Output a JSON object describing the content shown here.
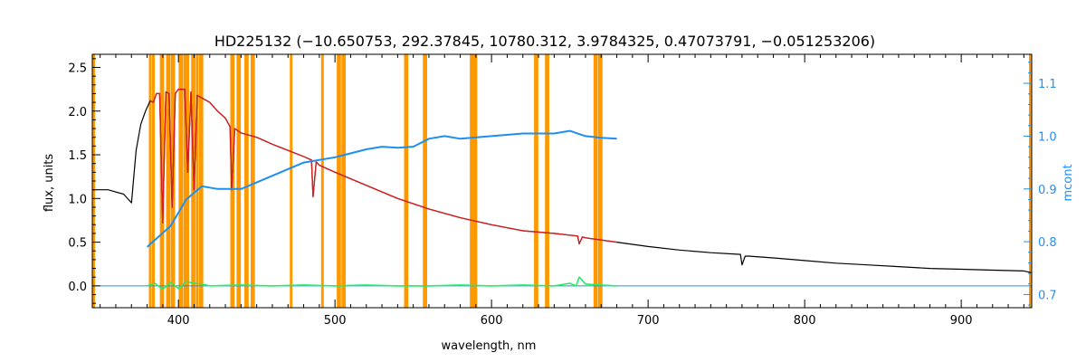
{
  "chart_data": {
    "type": "line",
    "title": "HD225132     (−10.650753, 292.37845, 10780.312, 3.9784325, 0.47073791, −0.051253206)",
    "xlabel": "wavelength, nm",
    "ylabel": "flux, units",
    "ylabel_right": "mcont",
    "xlim": [
      345,
      945
    ],
    "ylim": [
      -0.25,
      2.65
    ],
    "ylim_right": [
      0.675,
      1.155
    ],
    "x_ticks": [
      400,
      500,
      600,
      700,
      800,
      900
    ],
    "y_ticks": [
      0.0,
      0.5,
      1.0,
      1.5,
      2.0,
      2.5
    ],
    "y_ticks_right": [
      0.7,
      0.8,
      0.9,
      1.0,
      1.1
    ],
    "grid": false,
    "colors": {
      "observed": "#000000",
      "model": "#d42020",
      "residual": "#22ee66",
      "continuum": "#1e8fef",
      "mask": "#ff9900"
    },
    "mask_lines_nm": [
      382,
      384,
      389,
      390,
      393,
      394,
      396,
      397,
      401,
      402,
      404,
      405,
      406,
      409,
      410,
      412,
      414,
      415,
      434,
      435,
      438,
      439,
      443,
      444,
      447,
      448,
      472,
      492,
      502,
      503,
      505,
      506,
      545,
      546,
      557,
      558,
      587,
      588,
      589,
      590,
      628,
      629,
      635,
      636,
      666,
      667,
      669,
      670
    ],
    "series": [
      {
        "role": "observed",
        "axis": "left",
        "x": [
          345,
          355,
          365,
          370,
          373,
          376,
          379,
          382,
          384,
          386,
          388,
          390,
          392,
          394,
          396,
          398,
          400,
          402,
          404,
          406,
          408,
          410,
          412,
          415,
          420,
          425,
          430,
          433,
          434,
          436,
          440,
          450,
          460,
          470,
          480,
          485,
          486,
          488,
          490,
          500,
          520,
          540,
          560,
          580,
          600,
          620,
          640,
          655,
          656,
          658,
          660,
          680,
          700,
          720,
          740,
          759,
          760,
          762,
          764,
          780,
          800,
          820,
          840,
          860,
          880,
          900,
          920,
          940,
          945
        ],
        "y": [
          1.1,
          1.1,
          1.05,
          0.95,
          1.55,
          1.85,
          2.0,
          2.12,
          2.1,
          2.2,
          2.2,
          0.72,
          2.22,
          2.2,
          0.9,
          2.2,
          2.25,
          2.25,
          2.25,
          1.3,
          2.22,
          1.1,
          2.18,
          2.15,
          2.1,
          2.0,
          1.92,
          1.82,
          1.1,
          1.8,
          1.75,
          1.7,
          1.62,
          1.55,
          1.48,
          1.44,
          1.02,
          1.42,
          1.38,
          1.3,
          1.15,
          1.0,
          0.88,
          0.78,
          0.7,
          0.63,
          0.6,
          0.57,
          0.48,
          0.56,
          0.55,
          0.5,
          0.45,
          0.41,
          0.38,
          0.36,
          0.24,
          0.34,
          0.34,
          0.32,
          0.29,
          0.26,
          0.24,
          0.22,
          0.2,
          0.19,
          0.18,
          0.17,
          0.15
        ]
      },
      {
        "role": "model",
        "axis": "left",
        "x": [
          382,
          384,
          386,
          388,
          390,
          392,
          394,
          396,
          398,
          400,
          402,
          404,
          406,
          408,
          410,
          412,
          415,
          420,
          425,
          430,
          433,
          434,
          436,
          440,
          450,
          460,
          470,
          480,
          485,
          486,
          488,
          490,
          500,
          520,
          540,
          560,
          580,
          600,
          620,
          640,
          655,
          656,
          658,
          660,
          680
        ],
        "y": [
          2.12,
          2.1,
          2.2,
          2.2,
          0.72,
          2.22,
          2.2,
          0.9,
          2.2,
          2.25,
          2.25,
          2.25,
          1.3,
          2.22,
          1.1,
          2.18,
          2.15,
          2.1,
          2.0,
          1.92,
          1.82,
          1.1,
          1.8,
          1.75,
          1.7,
          1.62,
          1.55,
          1.48,
          1.44,
          1.02,
          1.42,
          1.38,
          1.3,
          1.15,
          1.0,
          0.88,
          0.78,
          0.7,
          0.63,
          0.6,
          0.57,
          0.48,
          0.56,
          0.55,
          0.5
        ]
      },
      {
        "role": "residual",
        "axis": "left",
        "x": [
          380,
          385,
          390,
          395,
          400,
          405,
          410,
          415,
          420,
          440,
          460,
          480,
          500,
          520,
          540,
          560,
          580,
          600,
          620,
          640,
          650,
          654,
          656,
          660,
          680
        ],
        "y": [
          0.0,
          0.03,
          -0.04,
          0.04,
          -0.03,
          0.05,
          0.03,
          0.02,
          0.0,
          0.01,
          0.0,
          0.01,
          0.0,
          0.01,
          0.0,
          0.0,
          0.01,
          0.0,
          0.01,
          0.0,
          0.03,
          0.0,
          0.1,
          0.02,
          0.0
        ]
      },
      {
        "role": "continuum",
        "axis": "right",
        "x": [
          380,
          395,
          405,
          415,
          425,
          440,
          460,
          480,
          500,
          520,
          530,
          540,
          550,
          560,
          570,
          580,
          600,
          620,
          640,
          650,
          660,
          670,
          680
        ],
        "y": [
          0.79,
          0.83,
          0.88,
          0.905,
          0.9,
          0.9,
          0.925,
          0.95,
          0.96,
          0.975,
          0.98,
          0.978,
          0.98,
          0.995,
          1.0,
          0.995,
          1.0,
          1.005,
          1.005,
          1.01,
          1.0,
          0.997,
          0.995
        ]
      },
      {
        "role": "baseline",
        "axis": "left",
        "x": [
          345,
          945
        ],
        "y": [
          0.0,
          0.0
        ]
      }
    ]
  }
}
